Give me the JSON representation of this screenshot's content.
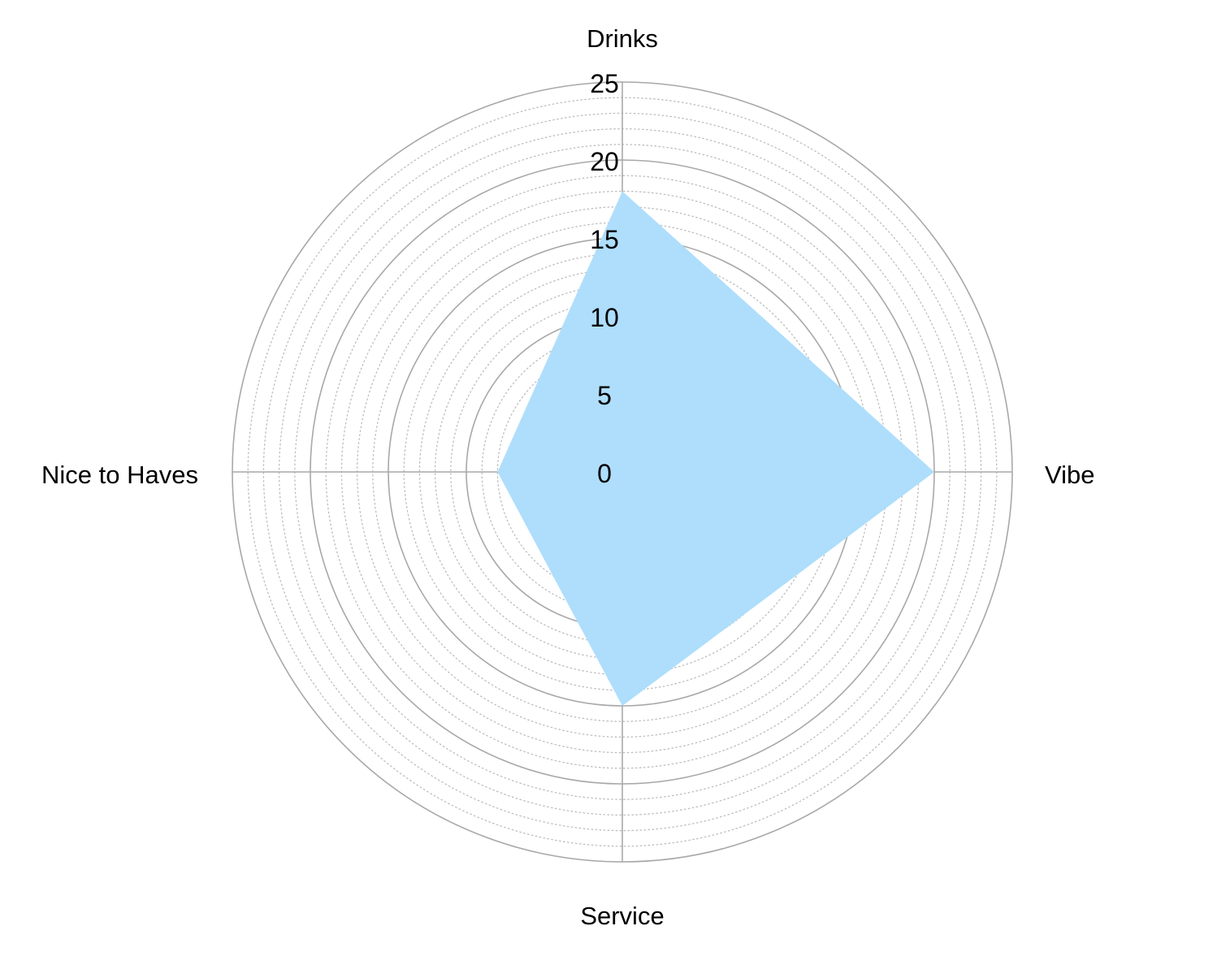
{
  "chart_data": {
    "type": "radar",
    "axes": [
      "Drinks",
      "Vibe",
      "Service",
      "Nice to Haves"
    ],
    "series": [
      {
        "values": [
          18,
          20,
          15,
          8
        ]
      }
    ],
    "radial_ticks": [
      0,
      5,
      10,
      15,
      20,
      25
    ],
    "rlim": [
      0,
      25
    ],
    "minor_grid_step": 1,
    "grid": true,
    "legend": "none",
    "colors": {
      "fill": "#aedefc",
      "major_grid": "#a8a8a8",
      "minor_grid": "#bdbdbd",
      "text": "#000000"
    }
  }
}
